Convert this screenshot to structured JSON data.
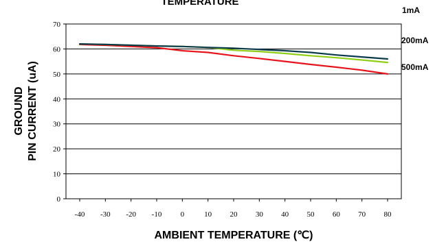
{
  "chart_data": {
    "type": "line",
    "title": "TEMPERATURE",
    "xlabel": "AMBIENT TEMPERATURE (℃)",
    "ylabel_lines": [
      "GROUND",
      "PIN CURRENT (uA)"
    ],
    "x": [
      -40,
      -30,
      -20,
      -10,
      0,
      10,
      20,
      30,
      40,
      50,
      60,
      70,
      80
    ],
    "xlim": [
      -40,
      80
    ],
    "ylim": [
      0,
      70
    ],
    "yticks": [
      0,
      10,
      20,
      30,
      40,
      50,
      60,
      70
    ],
    "grid": true,
    "series": [
      {
        "name": "1mA",
        "color": "#0a3a4c",
        "values": [
          62.0,
          61.8,
          61.5,
          61.2,
          61.0,
          60.6,
          60.3,
          59.8,
          59.3,
          58.6,
          57.6,
          56.8,
          56.0
        ]
      },
      {
        "name": "200mA",
        "color": "#8fce17",
        "values": [
          62.0,
          61.8,
          61.5,
          61.2,
          61.0,
          60.6,
          59.5,
          59.0,
          58.2,
          57.3,
          56.5,
          55.6,
          54.6
        ]
      },
      {
        "name": "500mA",
        "color": "#e8141b",
        "values": [
          61.8,
          61.5,
          61.0,
          60.5,
          59.3,
          58.6,
          57.3,
          56.2,
          55.0,
          53.8,
          52.7,
          51.5,
          50.0
        ]
      }
    ]
  }
}
